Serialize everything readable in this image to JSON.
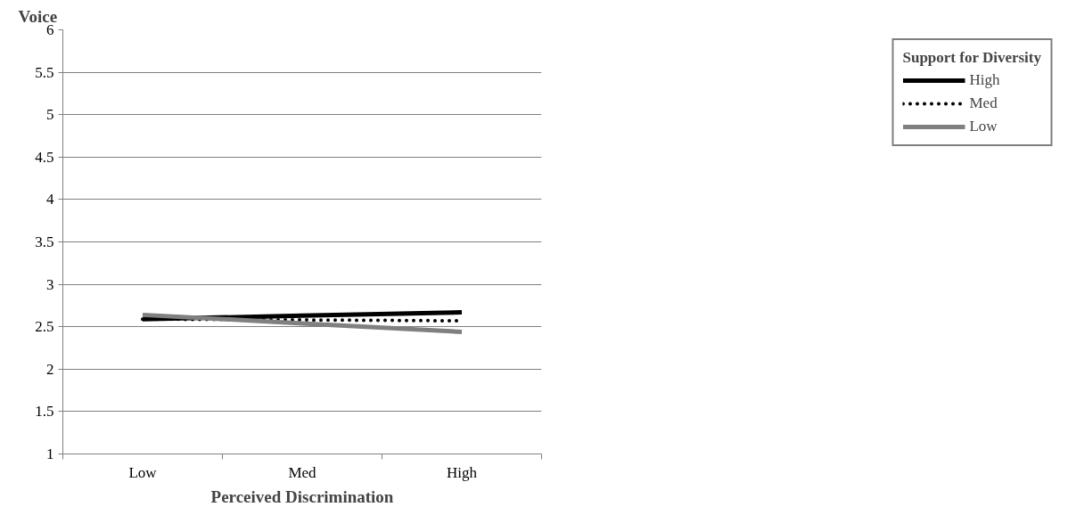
{
  "chart_data": {
    "type": "line",
    "xlabel": "Perceived Discrimination",
    "ylabel": "Voice",
    "legend_title": "Support for Diversity",
    "categories": [
      "Low",
      "Med",
      "High"
    ],
    "series": [
      {
        "name": "High",
        "color": "#000000",
        "line_style": "solid",
        "values": [
          2.59,
          2.63,
          2.67
        ]
      },
      {
        "name": "Med",
        "color": "#000000",
        "line_style": "dotted",
        "values": [
          2.59,
          2.58,
          2.57
        ]
      },
      {
        "name": "Low",
        "color": "#808080",
        "line_style": "solid",
        "values": [
          2.64,
          2.54,
          2.44
        ]
      }
    ],
    "ylim": [
      1,
      6
    ],
    "yticks": [
      1,
      1.5,
      2,
      2.5,
      3,
      3.5,
      4,
      4.5,
      5,
      5.5,
      6
    ],
    "grid": "y",
    "legend": "right",
    "marker": "none"
  }
}
